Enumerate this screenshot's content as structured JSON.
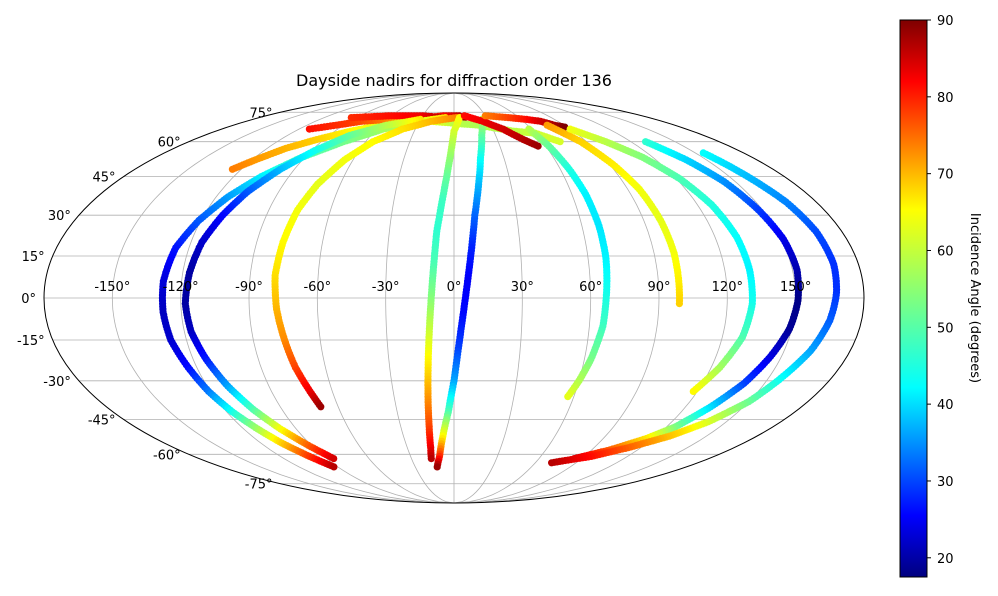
{
  "chart_data": {
    "type": "scatter",
    "projection": "mollweide",
    "title": "Dayside nadirs for diffraction order 136",
    "xlabel": "",
    "ylabel": "",
    "grid": true,
    "xlim": [
      -180,
      180
    ],
    "ylim": [
      -90,
      90
    ],
    "xtick_labels": [
      "-150°",
      "-120°",
      "-90°",
      "-60°",
      "-30°",
      "0°",
      "30°",
      "60°",
      "90°",
      "120°",
      "150°"
    ],
    "xtick_values": [
      -150,
      -120,
      -90,
      -60,
      -30,
      0,
      30,
      60,
      90,
      120,
      150
    ],
    "ytick_labels": [
      "-75°",
      "-60°",
      "-45°",
      "-30°",
      "-15°",
      "0°",
      "15°",
      "30°",
      "45°",
      "60°",
      "75°"
    ],
    "ytick_values": [
      -75,
      -60,
      -45,
      -30,
      -15,
      0,
      15,
      30,
      45,
      60,
      75
    ],
    "colorbar": {
      "label": "Incidence Angle (degrees)",
      "colormap": "jet",
      "range": [
        17.5,
        90
      ],
      "tick_labels": [
        "20",
        "30",
        "40",
        "50",
        "60",
        "70",
        "80",
        "90"
      ],
      "tick_values": [
        20,
        30,
        40,
        50,
        60,
        70,
        80,
        90
      ]
    },
    "series": [
      {
        "points": [
          [
            -22,
            71,
            56
          ],
          [
            -42,
            70,
            58
          ],
          [
            -60,
            68,
            61
          ],
          [
            -78,
            65,
            63
          ],
          [
            -95,
            61,
            66
          ],
          [
            -108,
            57,
            68
          ],
          [
            -118,
            52,
            70
          ],
          [
            -125,
            48,
            72
          ]
        ]
      },
      {
        "points": [
          [
            -25,
            72,
            76
          ],
          [
            -10,
            73,
            81
          ],
          [
            5,
            73,
            85
          ],
          [
            10,
            72,
            88
          ]
        ]
      },
      {
        "points": [
          [
            -112,
            66,
            80
          ],
          [
            -80,
            70,
            76
          ],
          [
            -60,
            71,
            72
          ],
          [
            -40,
            71,
            66
          ],
          [
            -20,
            70,
            62
          ],
          [
            0,
            69,
            58
          ],
          [
            20,
            68,
            57
          ],
          [
            45,
            65,
            58
          ],
          [
            60,
            64,
            59
          ],
          [
            72,
            60,
            60
          ]
        ]
      },
      {
        "points": [
          [
            -95,
            72,
            78
          ],
          [
            -60,
            73,
            80
          ],
          [
            -30,
            73,
            82
          ],
          [
            -10,
            72,
            86
          ]
        ]
      },
      {
        "points": [
          [
            -8,
            72,
            66
          ],
          [
            -30,
            70,
            60
          ],
          [
            -55,
            66,
            56
          ],
          [
            -75,
            60,
            53
          ],
          [
            -92,
            53,
            50
          ],
          [
            -105,
            45,
            44
          ],
          [
            -114,
            37,
            38
          ],
          [
            -121,
            28,
            33
          ],
          [
            -126,
            18,
            28
          ],
          [
            -128,
            6,
            24
          ],
          [
            -128,
            -5,
            22
          ],
          [
            -127,
            -15,
            23
          ],
          [
            -124,
            -25,
            27
          ],
          [
            -121,
            -34,
            35
          ],
          [
            -117,
            -42,
            46
          ],
          [
            -112,
            -49,
            56
          ],
          [
            -107,
            -55,
            66
          ],
          [
            -100,
            -61,
            77
          ],
          [
            -93,
            -66,
            86
          ]
        ]
      },
      {
        "points": [
          [
            -30,
            71,
            65
          ],
          [
            -55,
            68,
            58
          ],
          [
            -75,
            63,
            52
          ],
          [
            -88,
            56,
            46
          ],
          [
            -98,
            48,
            40
          ],
          [
            -106,
            39,
            33
          ],
          [
            -111,
            30,
            27
          ],
          [
            -115,
            20,
            23
          ],
          [
            -117,
            9,
            20
          ],
          [
            -118,
            -2,
            20
          ],
          [
            -117,
            -12,
            22
          ],
          [
            -114,
            -22,
            28
          ],
          [
            -110,
            -32,
            38
          ],
          [
            -105,
            -41,
            50
          ],
          [
            -99,
            -49,
            62
          ],
          [
            -92,
            -56,
            74
          ],
          [
            -85,
            -62,
            84
          ]
        ]
      },
      {
        "points": [
          [
            2,
            72,
            72
          ],
          [
            -20,
            70,
            68
          ],
          [
            -40,
            66,
            65
          ],
          [
            -55,
            60,
            63
          ],
          [
            -65,
            52,
            62
          ],
          [
            -72,
            42,
            61
          ],
          [
            -76,
            32,
            62
          ],
          [
            -78,
            20,
            63
          ],
          [
            -79,
            8,
            65
          ],
          [
            -78,
            -4,
            68
          ],
          [
            -76,
            -15,
            71
          ],
          [
            -74,
            -25,
            76
          ],
          [
            -71,
            -34,
            82
          ],
          [
            -69,
            -40,
            88
          ]
        ]
      },
      {
        "points": [
          [
            5,
            72,
            63
          ],
          [
            0,
            65,
            60
          ],
          [
            -2,
            55,
            56
          ],
          [
            -4,
            45,
            52
          ],
          [
            -6,
            35,
            49
          ],
          [
            -8,
            24,
            48
          ],
          [
            -9,
            12,
            50
          ],
          [
            -10,
            0,
            54
          ],
          [
            -11,
            -12,
            59
          ],
          [
            -12,
            -24,
            64
          ],
          [
            -13,
            -36,
            70
          ],
          [
            -14,
            -48,
            76
          ],
          [
            -15,
            -57,
            82
          ],
          [
            -16,
            -62,
            86
          ]
        ]
      },
      {
        "points": [
          [
            25,
            71,
            58
          ],
          [
            20,
            63,
            52
          ],
          [
            16,
            53,
            46
          ],
          [
            13,
            42,
            40
          ],
          [
            10,
            30,
            34
          ],
          [
            8,
            18,
            29
          ],
          [
            6,
            6,
            26
          ],
          [
            4,
            -6,
            27
          ],
          [
            2,
            -18,
            31
          ],
          [
            0,
            -30,
            38
          ],
          [
            -3,
            -42,
            50
          ],
          [
            -7,
            -53,
            64
          ],
          [
            -10,
            -61,
            78
          ],
          [
            -13,
            -66,
            88
          ]
        ]
      },
      {
        "points": [
          [
            10,
            73,
            80
          ],
          [
            25,
            70,
            82
          ],
          [
            38,
            66,
            84
          ],
          [
            48,
            61,
            86
          ],
          [
            55,
            58,
            88
          ]
        ]
      },
      {
        "points": [
          [
            30,
            73,
            72
          ],
          [
            50,
            72,
            76
          ],
          [
            65,
            71,
            80
          ],
          [
            75,
            70,
            84
          ],
          [
            82,
            68,
            87
          ],
          [
            88,
            67,
            90
          ]
        ]
      },
      {
        "points": [
          [
            58,
            66,
            58
          ],
          [
            62,
            58,
            52
          ],
          [
            65,
            48,
            47
          ],
          [
            67,
            38,
            44
          ],
          [
            68,
            26,
            43
          ],
          [
            68,
            14,
            44
          ],
          [
            67,
            2,
            46
          ],
          [
            66,
            -10,
            49
          ],
          [
            63,
            -22,
            53
          ],
          [
            60,
            -30,
            57
          ],
          [
            57,
            -36,
            61
          ]
        ]
      },
      {
        "points": [
          [
            76,
            68,
            70
          ],
          [
            86,
            60,
            66
          ],
          [
            92,
            50,
            64
          ],
          [
            96,
            40,
            62
          ],
          [
            98,
            28,
            61
          ],
          [
            99,
            16,
            62
          ],
          [
            99,
            5,
            64
          ],
          [
            99,
            -2,
            66
          ]
        ]
      },
      {
        "points": [
          [
            90,
            66,
            62
          ],
          [
            103,
            60,
            58
          ],
          [
            114,
            53,
            54
          ],
          [
            122,
            44,
            50
          ],
          [
            127,
            34,
            47
          ],
          [
            130,
            22,
            45
          ],
          [
            131,
            10,
            44
          ],
          [
            131,
            -2,
            46
          ],
          [
            129,
            -14,
            50
          ],
          [
            124,
            -25,
            56
          ],
          [
            118,
            -34,
            63
          ]
        ]
      },
      {
        "points": [
          [
            130,
            60,
            48
          ],
          [
            138,
            52,
            42
          ],
          [
            144,
            43,
            37
          ],
          [
            148,
            32,
            31
          ],
          [
            151,
            21,
            25
          ],
          [
            152,
            10,
            21
          ],
          [
            151,
            -1,
            18
          ],
          [
            149,
            -11,
            19
          ],
          [
            145,
            -21,
            24
          ],
          [
            140,
            -31,
            31
          ],
          [
            133,
            -40,
            42
          ],
          [
            125,
            -48,
            53
          ],
          [
            116,
            -53,
            64
          ],
          [
            102,
            -58,
            74
          ],
          [
            85,
            -62,
            84
          ]
        ]
      },
      {
        "points": [
          [
            155,
            55,
            45
          ],
          [
            160,
            45,
            40
          ],
          [
            165,
            35,
            36
          ],
          [
            168,
            24,
            32
          ],
          [
            169,
            12,
            30
          ],
          [
            168,
            2,
            30
          ],
          [
            166,
            -8,
            33
          ],
          [
            162,
            -19,
            38
          ],
          [
            156,
            -29,
            45
          ],
          [
            150,
            -38,
            52
          ],
          [
            140,
            -46,
            60
          ],
          [
            128,
            -52,
            67
          ],
          [
            112,
            -57,
            74
          ],
          [
            95,
            -61,
            80
          ],
          [
            72,
            -64,
            86
          ]
        ]
      }
    ]
  }
}
